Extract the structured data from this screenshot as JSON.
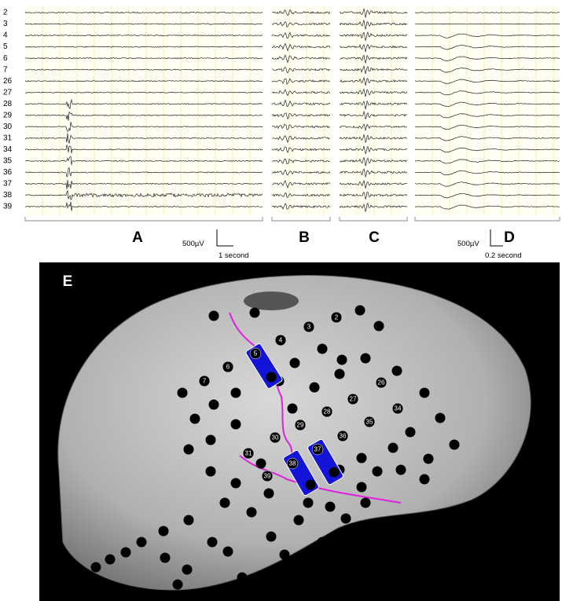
{
  "figure": {
    "channels": [
      "2",
      "3",
      "4",
      "5",
      "6",
      "7",
      "26",
      "27",
      "28",
      "29",
      "30",
      "31",
      "34",
      "35",
      "36",
      "37",
      "38",
      "39"
    ],
    "panels": [
      "A",
      "B",
      "C",
      "D",
      "E"
    ],
    "scale_bars": [
      {
        "amplitude": "500µV",
        "time": "1 second"
      },
      {
        "amplitude": "500µV",
        "time": "0.2 second"
      }
    ],
    "electrodes": [
      "2",
      "3",
      "4",
      "5",
      "6",
      "7",
      "26",
      "27",
      "28",
      "29",
      "30",
      "31",
      "34",
      "35",
      "36",
      "37",
      "38",
      "39"
    ]
  }
}
